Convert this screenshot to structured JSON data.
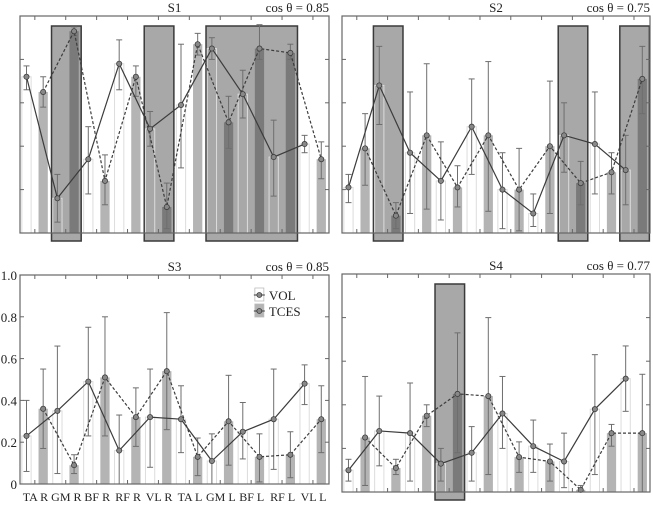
{
  "chart_data": [
    {
      "type": "bar",
      "title": "S1",
      "annotation": "cos θ = 0.85",
      "categories": [
        "TA R",
        "GM R",
        "BF R",
        "RF R",
        "VL R",
        "TA L",
        "GM L",
        "BF L",
        "RF L",
        "VL L"
      ],
      "ylim": [
        0,
        1.0
      ],
      "yticks": [
        0,
        0.2,
        0.4,
        0.6,
        0.8,
        1.0
      ],
      "show_ytick_labels": false,
      "show_xtick_labels": false,
      "series": [
        {
          "name": "VOL",
          "values": [
            0.72,
            0.16,
            0.34,
            0.78,
            0.48,
            0.59,
            0.85,
            0.64,
            0.35,
            0.41
          ],
          "err_low": [
            0.66,
            0.05,
            0.18,
            0.66,
            0.4,
            0.3,
            0.8,
            0.53,
            0.17,
            0.37
          ],
          "err_high": [
            0.77,
            0.27,
            0.49,
            0.89,
            0.56,
            0.87,
            0.9,
            0.75,
            0.52,
            0.45
          ]
        },
        {
          "name": "TCES",
          "values": [
            0.65,
            0.93,
            0.24,
            0.72,
            0.12,
            0.87,
            0.51,
            0.85,
            0.83,
            0.34
          ],
          "err_low": [
            0.58,
            0.91,
            0.13,
            0.63,
            0.02,
            0.82,
            0.39,
            0.8,
            0.8,
            0.25
          ],
          "err_high": [
            0.72,
            0.95,
            0.36,
            0.77,
            0.23,
            0.92,
            0.63,
            0.96,
            0.87,
            0.42
          ]
        }
      ],
      "highlights": [
        {
          "from": "GM R",
          "to": "GM R"
        },
        {
          "from": "VL R",
          "to": "VL R"
        },
        {
          "from": "GM L",
          "to": "RF L"
        }
      ]
    },
    {
      "type": "bar",
      "title": "S2",
      "annotation": "cos θ = 0.75",
      "categories": [
        "TA R",
        "GM R",
        "BF R",
        "RF R",
        "VL R",
        "TA L",
        "GM L",
        "BF L",
        "RF L",
        "VL L"
      ],
      "ylim": [
        0,
        1.0
      ],
      "yticks": [
        0,
        0.2,
        0.4,
        0.6,
        0.8,
        1.0
      ],
      "show_ytick_labels": false,
      "show_xtick_labels": false,
      "series": [
        {
          "name": "VOL",
          "values": [
            0.21,
            0.68,
            0.37,
            0.24,
            0.49,
            0.2,
            0.09,
            0.45,
            0.41,
            0.29
          ],
          "err_low": [
            0.14,
            0.5,
            0.09,
            0.06,
            0.27,
            0.02,
            0.03,
            0.28,
            0.18,
            0.13
          ],
          "err_high": [
            0.27,
            0.86,
            0.65,
            0.42,
            0.71,
            0.37,
            0.18,
            0.6,
            0.65,
            0.45
          ]
        },
        {
          "name": "TCES",
          "values": [
            0.39,
            0.08,
            0.45,
            0.21,
            0.45,
            0.2,
            0.4,
            0.23,
            0.28,
            0.71
          ],
          "err_low": [
            0.22,
            0.02,
            0.11,
            0.12,
            0.1,
            0.01,
            0.09,
            0.13,
            0.18,
            0.55
          ],
          "err_high": [
            0.55,
            0.14,
            0.78,
            0.31,
            0.79,
            0.39,
            0.7,
            0.33,
            0.37,
            0.86
          ]
        }
      ],
      "highlights": [
        {
          "from": "GM R",
          "to": "GM R"
        },
        {
          "from": "BF L",
          "to": "BF L"
        },
        {
          "from": "VL L",
          "to": "VL L"
        }
      ]
    },
    {
      "type": "bar",
      "title": "S3",
      "annotation": "cos θ = 0.85",
      "categories": [
        "TA R",
        "GM R",
        "BF R",
        "RF R",
        "VL R",
        "TA L",
        "GM L",
        "BF L",
        "RF L",
        "VL L"
      ],
      "ylim": [
        0,
        1.0
      ],
      "yticks": [
        0,
        0.2,
        0.4,
        0.6,
        0.8,
        1.0
      ],
      "ytick_labels": [
        "0",
        "0.2",
        "0.4",
        "0.6",
        "0.8",
        "1.0"
      ],
      "xtick_labels": [
        "TA R",
        "GM R",
        "BF R",
        "RF R",
        "VL R",
        "TA L",
        "GM L",
        "BF L",
        "RF L",
        "VL L"
      ],
      "show_ytick_labels": true,
      "show_xtick_labels": true,
      "legend": {
        "position": "top-right",
        "entries": [
          "VOL",
          "TCES"
        ]
      },
      "series": [
        {
          "name": "VOL",
          "values": [
            0.23,
            0.35,
            0.49,
            0.16,
            0.32,
            0.31,
            0.11,
            0.25,
            0.31,
            0.48
          ],
          "err_low": [
            0.06,
            0.05,
            0.23,
            0.0,
            0.08,
            0.15,
            0.0,
            0.12,
            0.07,
            0.38
          ],
          "err_high": [
            0.4,
            0.66,
            0.75,
            0.33,
            0.55,
            0.47,
            0.24,
            0.39,
            0.55,
            0.57
          ]
        },
        {
          "name": "TCES",
          "values": [
            0.36,
            0.09,
            0.51,
            0.32,
            0.54,
            0.13,
            0.3,
            0.13,
            0.14,
            0.31
          ],
          "err_low": [
            0.17,
            0.05,
            0.23,
            0.18,
            0.26,
            0.04,
            0.09,
            0.01,
            0.03,
            0.15
          ],
          "err_high": [
            0.55,
            0.14,
            0.8,
            0.46,
            0.82,
            0.22,
            0.52,
            0.24,
            0.25,
            0.47
          ]
        }
      ],
      "highlights": []
    },
    {
      "type": "bar",
      "title": "S4",
      "annotation": "cos θ = 0.77",
      "categories": [
        "TA R",
        "GM R",
        "BF R",
        "RF R",
        "VL R",
        "TA L",
        "GM L",
        "BF L",
        "RF L",
        "VL L"
      ],
      "ylim": [
        0,
        1.0
      ],
      "yticks": [
        0,
        0.2,
        0.4,
        0.6,
        0.8,
        1.0
      ],
      "show_ytick_labels": false,
      "show_xtick_labels": false,
      "series": [
        {
          "name": "VOL",
          "values": [
            0.1,
            0.28,
            0.27,
            0.13,
            0.18,
            0.36,
            0.21,
            0.14,
            0.38,
            0.52
          ],
          "err_low": [
            0.05,
            0.12,
            0.05,
            0.05,
            0.05,
            0.2,
            0.09,
            0.02,
            0.08,
            0.37
          ],
          "err_high": [
            0.15,
            0.44,
            0.5,
            0.2,
            0.3,
            0.53,
            0.33,
            0.27,
            0.63,
            0.67
          ]
        },
        {
          "name": "TCES",
          "values": [
            0.25,
            0.11,
            0.35,
            0.45,
            0.44,
            0.16,
            0.14,
            0.01,
            0.27,
            0.27
          ],
          "err_low": [
            0.03,
            0.08,
            0.3,
            0.18,
            0.08,
            0.09,
            0.05,
            0.0,
            0.21,
            0.0
          ],
          "err_high": [
            0.53,
            0.15,
            0.4,
            0.73,
            0.8,
            0.23,
            0.22,
            0.03,
            0.31,
            0.54
          ]
        }
      ],
      "highlights": [
        {
          "from": "RF R",
          "to": "RF R"
        }
      ]
    }
  ],
  "colors": {
    "vol_bar_fill": "#ffffff",
    "vol_bar_edge": "#dcdcdc",
    "tces_bar_fill": "#b4b4b4",
    "tces_bar_fill_highlighted": "#7a7a7a",
    "highlight_fill": "#a8a8a8",
    "highlight_edge": "#3a3a3a",
    "line": "#3c3c3c",
    "errorbar": "#6e6e6e",
    "axis": "#666666"
  }
}
